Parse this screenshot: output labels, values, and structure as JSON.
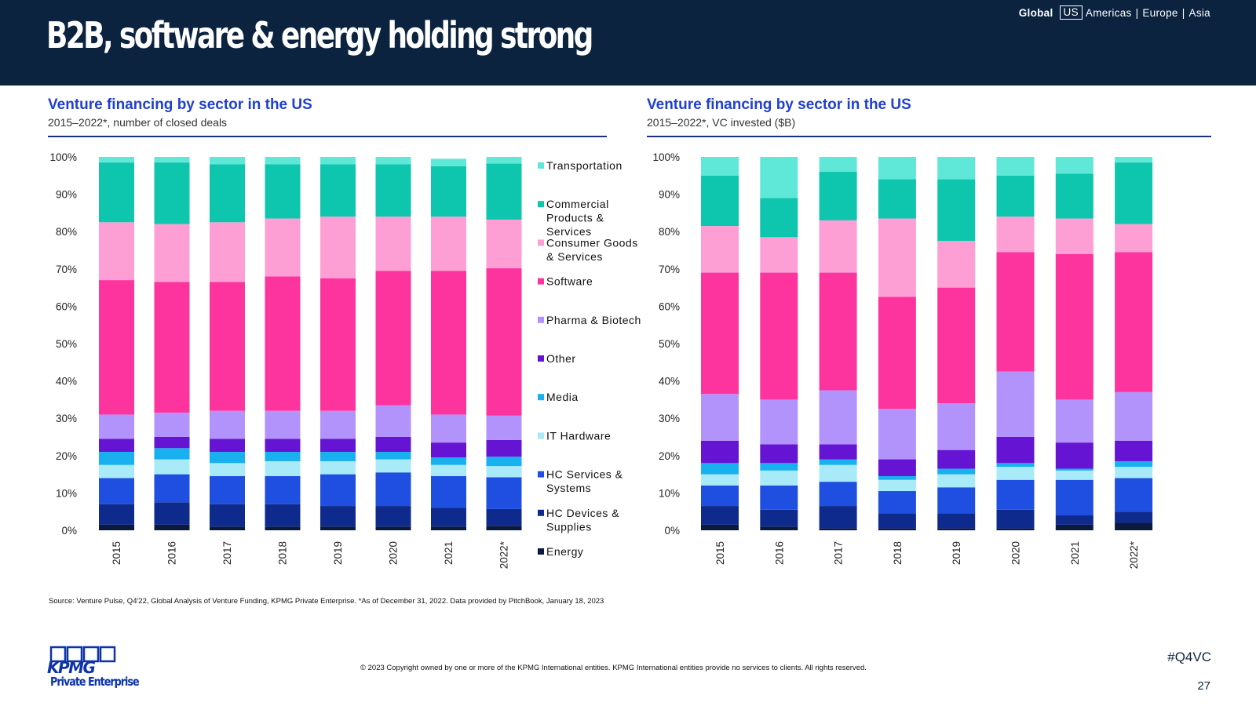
{
  "header": {
    "title": "B2B, software & energy holding strong",
    "nav": {
      "global": "Global",
      "us": "US",
      "americas": "Americas",
      "separator": "|",
      "europe": "Europe",
      "asia": "Asia"
    }
  },
  "left_panel": {
    "title": "Venture financing by sector in the US",
    "subtitle": "2015–2022*, number of closed deals"
  },
  "right_panel": {
    "title": "Venture financing by sector in the US",
    "subtitle": "2015–2022*, VC invested ($B)"
  },
  "colors": {
    "Energy": "#0a1a3f",
    "HC Devices & Supplies": "#0d2a8c",
    "HC Services & Systems": "#1e4fe0",
    "IT Hardware": "#a9eaf8",
    "Media": "#18b0ee",
    "Other": "#6614d4",
    "Pharma & Biotech": "#b293fb",
    "Software": "#fd349d",
    "Consumer Goods & Services": "#fd9fd5",
    "Commercial Products & Services": "#0dc6ad",
    "Transportation": "#5fe8d8"
  },
  "chart_data": [
    {
      "type": "bar",
      "stacked": true,
      "title": "Venture financing by sector in the US",
      "subtitle": "2015–2022*, number of closed deals",
      "categories": [
        "2015",
        "2016",
        "2017",
        "2018",
        "2019",
        "2020",
        "2021",
        "2022*"
      ],
      "y_ticks": [
        "0%",
        "10%",
        "20%",
        "30%",
        "40%",
        "50%",
        "60%",
        "70%",
        "80%",
        "90%",
        "100%"
      ],
      "ylim": [
        0,
        100
      ],
      "legend_position": "right",
      "series": [
        {
          "name": "Energy",
          "values": [
            1.5,
            1.5,
            1,
            1,
            1,
            1,
            1,
            1.2
          ]
        },
        {
          "name": "HC Devices & Supplies",
          "values": [
            5.5,
            6,
            6,
            6,
            5.5,
            5.5,
            5,
            4.5
          ]
        },
        {
          "name": "HC Services & Systems",
          "values": [
            7,
            7.5,
            7.5,
            7.5,
            8.5,
            9,
            8.5,
            8.5
          ]
        },
        {
          "name": "IT Hardware",
          "values": [
            3.5,
            4,
            3.5,
            4,
            3.5,
            3.5,
            3,
            3
          ]
        },
        {
          "name": "Media",
          "values": [
            3.5,
            3,
            3,
            2.5,
            2.5,
            2,
            2,
            2.5
          ]
        },
        {
          "name": "Other",
          "values": [
            3.5,
            3,
            3.5,
            3.5,
            3.5,
            4,
            4,
            4.5
          ]
        },
        {
          "name": "Pharma & Biotech",
          "values": [
            6.5,
            6.5,
            7.5,
            7.5,
            7.5,
            8.5,
            7.5,
            6.5
          ]
        },
        {
          "name": "Software",
          "values": [
            36,
            35,
            34.5,
            36,
            35.5,
            36,
            38.5,
            39.5
          ]
        },
        {
          "name": "Consumer Goods & Services",
          "values": [
            15.5,
            15.5,
            16,
            15.5,
            16.5,
            14.5,
            14.5,
            13
          ]
        },
        {
          "name": "Commercial Products & Services",
          "values": [
            16,
            16.5,
            15.5,
            14.5,
            14,
            14,
            13.5,
            15
          ]
        },
        {
          "name": "Transportation",
          "values": [
            1.5,
            1.5,
            2,
            2,
            2,
            2,
            2,
            1.8
          ]
        }
      ]
    },
    {
      "type": "bar",
      "stacked": true,
      "title": "Venture financing by sector in the US",
      "subtitle": "2015–2022*, VC invested ($B)",
      "categories": [
        "2015",
        "2016",
        "2017",
        "2018",
        "2019",
        "2020",
        "2021",
        "2022*"
      ],
      "y_ticks": [
        "0%",
        "10%",
        "20%",
        "30%",
        "40%",
        "50%",
        "60%",
        "70%",
        "80%",
        "90%",
        "100%"
      ],
      "ylim": [
        0,
        100
      ],
      "series": [
        {
          "name": "Energy",
          "values": [
            1.5,
            1,
            0.5,
            0.5,
            0.5,
            0.5,
            1.5,
            2
          ]
        },
        {
          "name": "HC Devices & Supplies",
          "values": [
            5,
            4.5,
            6,
            4,
            4,
            5,
            2.5,
            3
          ]
        },
        {
          "name": "HC Services & Systems",
          "values": [
            5.5,
            6.5,
            6.5,
            6,
            7,
            8,
            9.5,
            9
          ]
        },
        {
          "name": "IT Hardware",
          "values": [
            3,
            4,
            4.5,
            3,
            3.5,
            3.5,
            2.5,
            3
          ]
        },
        {
          "name": "Media",
          "values": [
            3,
            2,
            1.5,
            1,
            1.5,
            1,
            0.5,
            1.5
          ]
        },
        {
          "name": "Other",
          "values": [
            6,
            5,
            4,
            4.5,
            5,
            7,
            7,
            5.5
          ]
        },
        {
          "name": "Pharma & Biotech",
          "values": [
            12.5,
            12,
            14.5,
            13.5,
            12.5,
            17.5,
            11.5,
            13
          ]
        },
        {
          "name": "Software",
          "values": [
            32.5,
            34,
            31.5,
            30,
            31,
            32,
            39,
            37.5
          ]
        },
        {
          "name": "Consumer Goods & Services",
          "values": [
            12.5,
            9.5,
            14,
            21,
            12.5,
            9.5,
            9.5,
            7.5
          ]
        },
        {
          "name": "Commercial Products & Services",
          "values": [
            13.5,
            10.5,
            13,
            10.5,
            16.5,
            11,
            12,
            16.5
          ]
        },
        {
          "name": "Transportation",
          "values": [
            5,
            11,
            4,
            6,
            6,
            5,
            4.5,
            1.5
          ]
        }
      ]
    }
  ],
  "legend_labels": [
    [
      "Transportation"
    ],
    [
      "Commercial",
      "Products &",
      "Services"
    ],
    [
      "Consumer Goods",
      "& Services"
    ],
    [
      "Software"
    ],
    [
      "Pharma & Biotech"
    ],
    [
      "Other"
    ],
    [
      "Media"
    ],
    [
      "IT Hardware"
    ],
    [
      "HC Services &",
      "Systems"
    ],
    [
      "HC Devices &",
      "Supplies"
    ],
    [
      "Energy"
    ]
  ],
  "footer": {
    "source": "Source: Venture Pulse, Q4'22, Global Analysis of Venture Funding, KPMG Private Enterprise. *As of December 31, 2022. Data provided by PitchBook, January 18, 2023",
    "copyright": "© 2023 Copyright owned by one or more of the KPMG International entities. KPMG International entities provide no services to clients. All rights reserved.",
    "hashtag": "#Q4VC",
    "page_number": "27",
    "logo_word": "KPMG",
    "logo_subtitle": "Private Enterprise"
  }
}
